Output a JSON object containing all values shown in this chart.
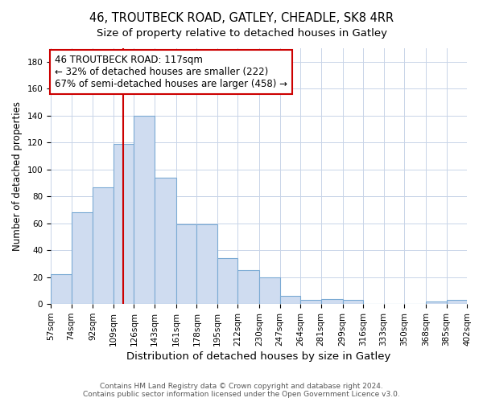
{
  "title": "46, TROUTBECK ROAD, GATLEY, CHEADLE, SK8 4RR",
  "subtitle": "Size of property relative to detached houses in Gatley",
  "xlabel": "Distribution of detached houses by size in Gatley",
  "ylabel": "Number of detached properties",
  "bar_color": "#cfdcf0",
  "bar_edge_color": "#7baad4",
  "background_color": "#ffffff",
  "grid_color": "#c8d4e8",
  "annotation_box_color": "#cc0000",
  "annotation_line_color": "#cc0000",
  "property_line_x": 117,
  "annotation_line1": "46 TROUTBECK ROAD: 117sqm",
  "annotation_line2": "← 32% of detached houses are smaller (222)",
  "annotation_line3": "67% of semi-detached houses are larger (458) →",
  "footer_line1": "Contains HM Land Registry data © Crown copyright and database right 2024.",
  "footer_line2": "Contains public sector information licensed under the Open Government Licence v3.0.",
  "bin_edges": [
    57,
    74,
    92,
    109,
    126,
    143,
    161,
    178,
    195,
    212,
    230,
    247,
    264,
    281,
    299,
    316,
    333,
    350,
    368,
    385,
    402
  ],
  "bar_heights": [
    22,
    68,
    87,
    119,
    140,
    94,
    59,
    59,
    34,
    25,
    20,
    6,
    3,
    4,
    3,
    0,
    0,
    0,
    2,
    3
  ],
  "ylim": [
    0,
    190
  ],
  "yticks": [
    0,
    20,
    40,
    60,
    80,
    100,
    120,
    140,
    160,
    180
  ],
  "title_fontsize": 10.5,
  "subtitle_fontsize": 9.5,
  "xlabel_fontsize": 9.5,
  "ylabel_fontsize": 8.5,
  "tick_fontsize": 7.5,
  "annotation_fontsize": 8.5,
  "footer_fontsize": 6.5
}
